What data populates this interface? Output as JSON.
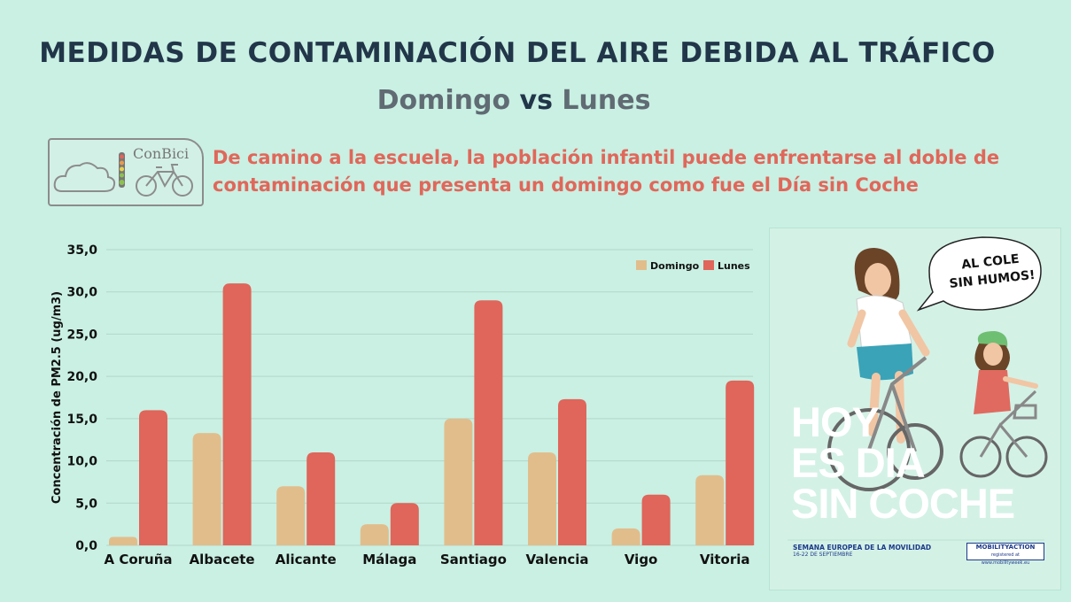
{
  "title": "MEDIDAS DE CONTAMINACIÓN DEL AIRE DEBIDA AL TRÁFICO",
  "subtitle": {
    "domingo": "Domingo",
    "vs": "vs",
    "lunes": "Lunes"
  },
  "logo": {
    "brand": "ConBici"
  },
  "description": {
    "line1": "De camino a la escuela, la población infantil puede enfrentarse al doble de",
    "line2": "contaminación que presenta un domingo como fue el Día sin Coche"
  },
  "poster": {
    "speech_line1": "AL COLE",
    "speech_line2": "SIN HUMOS!",
    "headline_1": "HOY",
    "headline_2": "ES DIA",
    "headline_3": "SIN COCHE",
    "semana_1": "SEMANA EUROPEA DE LA MOVILIDAD",
    "semana_2": "16-22 DE SEPTIEMBRE",
    "mobility_1": "MOBILITYACTION",
    "mobility_2": "registered at www.mobilityweek.eu"
  },
  "colors": {
    "domingo": "#e2bd8c",
    "lunes": "#e0655a"
  },
  "chart_data": {
    "type": "bar",
    "title": "",
    "xlabel": "",
    "ylabel": "Concentración de PM2.5 (ug/m3)",
    "ylim": [
      0,
      35
    ],
    "ytick_step": 5,
    "ytick_labels": [
      "0,0",
      "5,0",
      "10,0",
      "15,0",
      "20,0",
      "25,0",
      "30,0",
      "35,0"
    ],
    "grid": true,
    "legend_position": "top-right",
    "categories": [
      "A Coruña",
      "Albacete",
      "Alicante",
      "Málaga",
      "Santiago",
      "Valencia",
      "Vigo",
      "Vitoria"
    ],
    "series": [
      {
        "name": "Domingo",
        "values": [
          1.0,
          13.3,
          7.0,
          2.5,
          15.0,
          11.0,
          2.0,
          8.3
        ]
      },
      {
        "name": "Lunes",
        "values": [
          16.0,
          31.0,
          11.0,
          5.0,
          29.0,
          17.3,
          6.0,
          19.5
        ]
      }
    ]
  }
}
